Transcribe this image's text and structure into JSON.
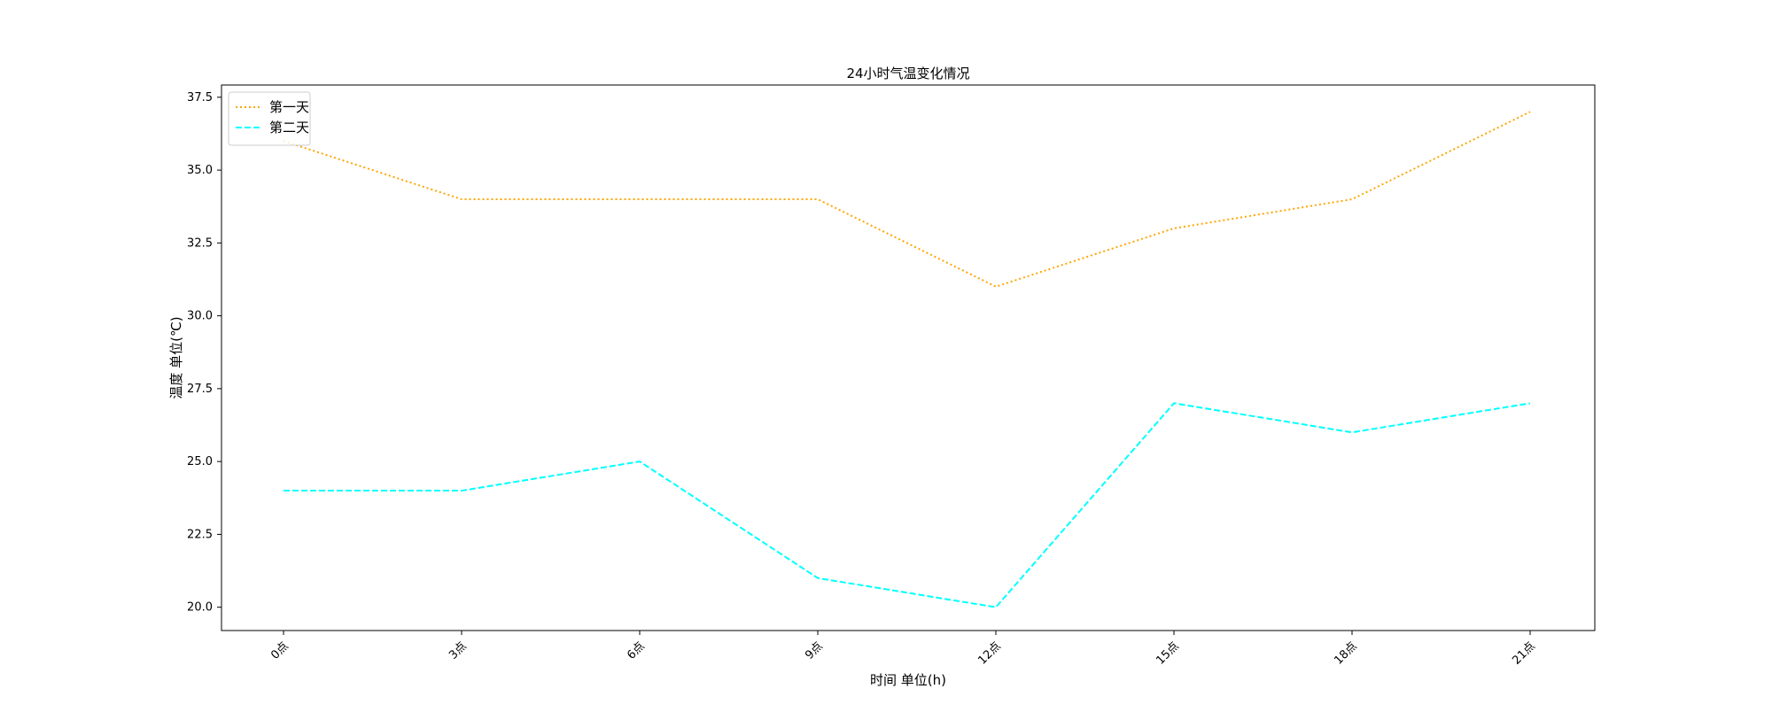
{
  "chart_data": {
    "type": "line",
    "title": "24小时气温变化情况",
    "xlabel": "时间 单位(h)",
    "ylabel": "温度 单位(℃)",
    "categories": [
      "0点",
      "3点",
      "6点",
      "9点",
      "12点",
      "15点",
      "18点",
      "21点"
    ],
    "x_tick_rotation_deg": 45,
    "ylim": [
      19.2,
      37.92
    ],
    "yticks": [
      20.0,
      22.5,
      25.0,
      27.5,
      30.0,
      32.5,
      35.0,
      37.5
    ],
    "ytick_labels": [
      "20.0",
      "22.5",
      "25.0",
      "27.5",
      "30.0",
      "32.5",
      "35.0",
      "37.5"
    ],
    "grid": false,
    "legend_position": "upper-left",
    "series": [
      {
        "name": "第一天",
        "values": [
          36,
          34,
          34,
          34,
          31,
          33,
          34,
          37
        ],
        "color": "#FFA500",
        "line_style": "dotted"
      },
      {
        "name": "第二天",
        "values": [
          24,
          24,
          25,
          21,
          20,
          27,
          26,
          27
        ],
        "color": "#00FFFF",
        "line_style": "dashed"
      }
    ]
  }
}
